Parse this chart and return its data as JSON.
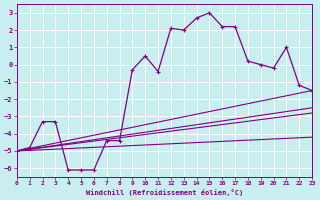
{
  "xlabel": "Windchill (Refroidissement éolien,°C)",
  "xlim": [
    0,
    23
  ],
  "ylim": [
    -6.5,
    3.5
  ],
  "yticks": [
    3,
    2,
    1,
    0,
    -1,
    -2,
    -3,
    -4,
    -5,
    -6
  ],
  "xticks": [
    0,
    1,
    2,
    3,
    4,
    5,
    6,
    7,
    8,
    9,
    10,
    11,
    12,
    13,
    14,
    15,
    16,
    17,
    18,
    19,
    20,
    21,
    22,
    23
  ],
  "bg_color": "#c8eef0",
  "grid_color": "#ffffff",
  "line_color": "#800080",
  "main_x": [
    0,
    1,
    2,
    3,
    4,
    5,
    6,
    7,
    8,
    9,
    10,
    11,
    12,
    13,
    14,
    15,
    16,
    17,
    18,
    19,
    20,
    21,
    22,
    23
  ],
  "main_y": [
    -5.0,
    -4.8,
    -3.3,
    -3.3,
    -6.1,
    -6.1,
    -6.1,
    -4.4,
    -4.4,
    -0.3,
    0.5,
    -0.4,
    2.1,
    2.0,
    2.7,
    3.0,
    2.2,
    2.2,
    0.2,
    0.0,
    -0.2,
    1.0,
    -1.2,
    -1.5
  ],
  "diag_lines": [
    {
      "x0": 0,
      "y0": -5.0,
      "x1": 23,
      "y1": -1.5
    },
    {
      "x0": 0,
      "y0": -5.0,
      "x1": 23,
      "y1": -2.5
    },
    {
      "x0": 0,
      "y0": -5.0,
      "x1": 23,
      "y1": -2.8
    },
    {
      "x0": 0,
      "y0": -5.0,
      "x1": 23,
      "y1": -4.2
    }
  ]
}
